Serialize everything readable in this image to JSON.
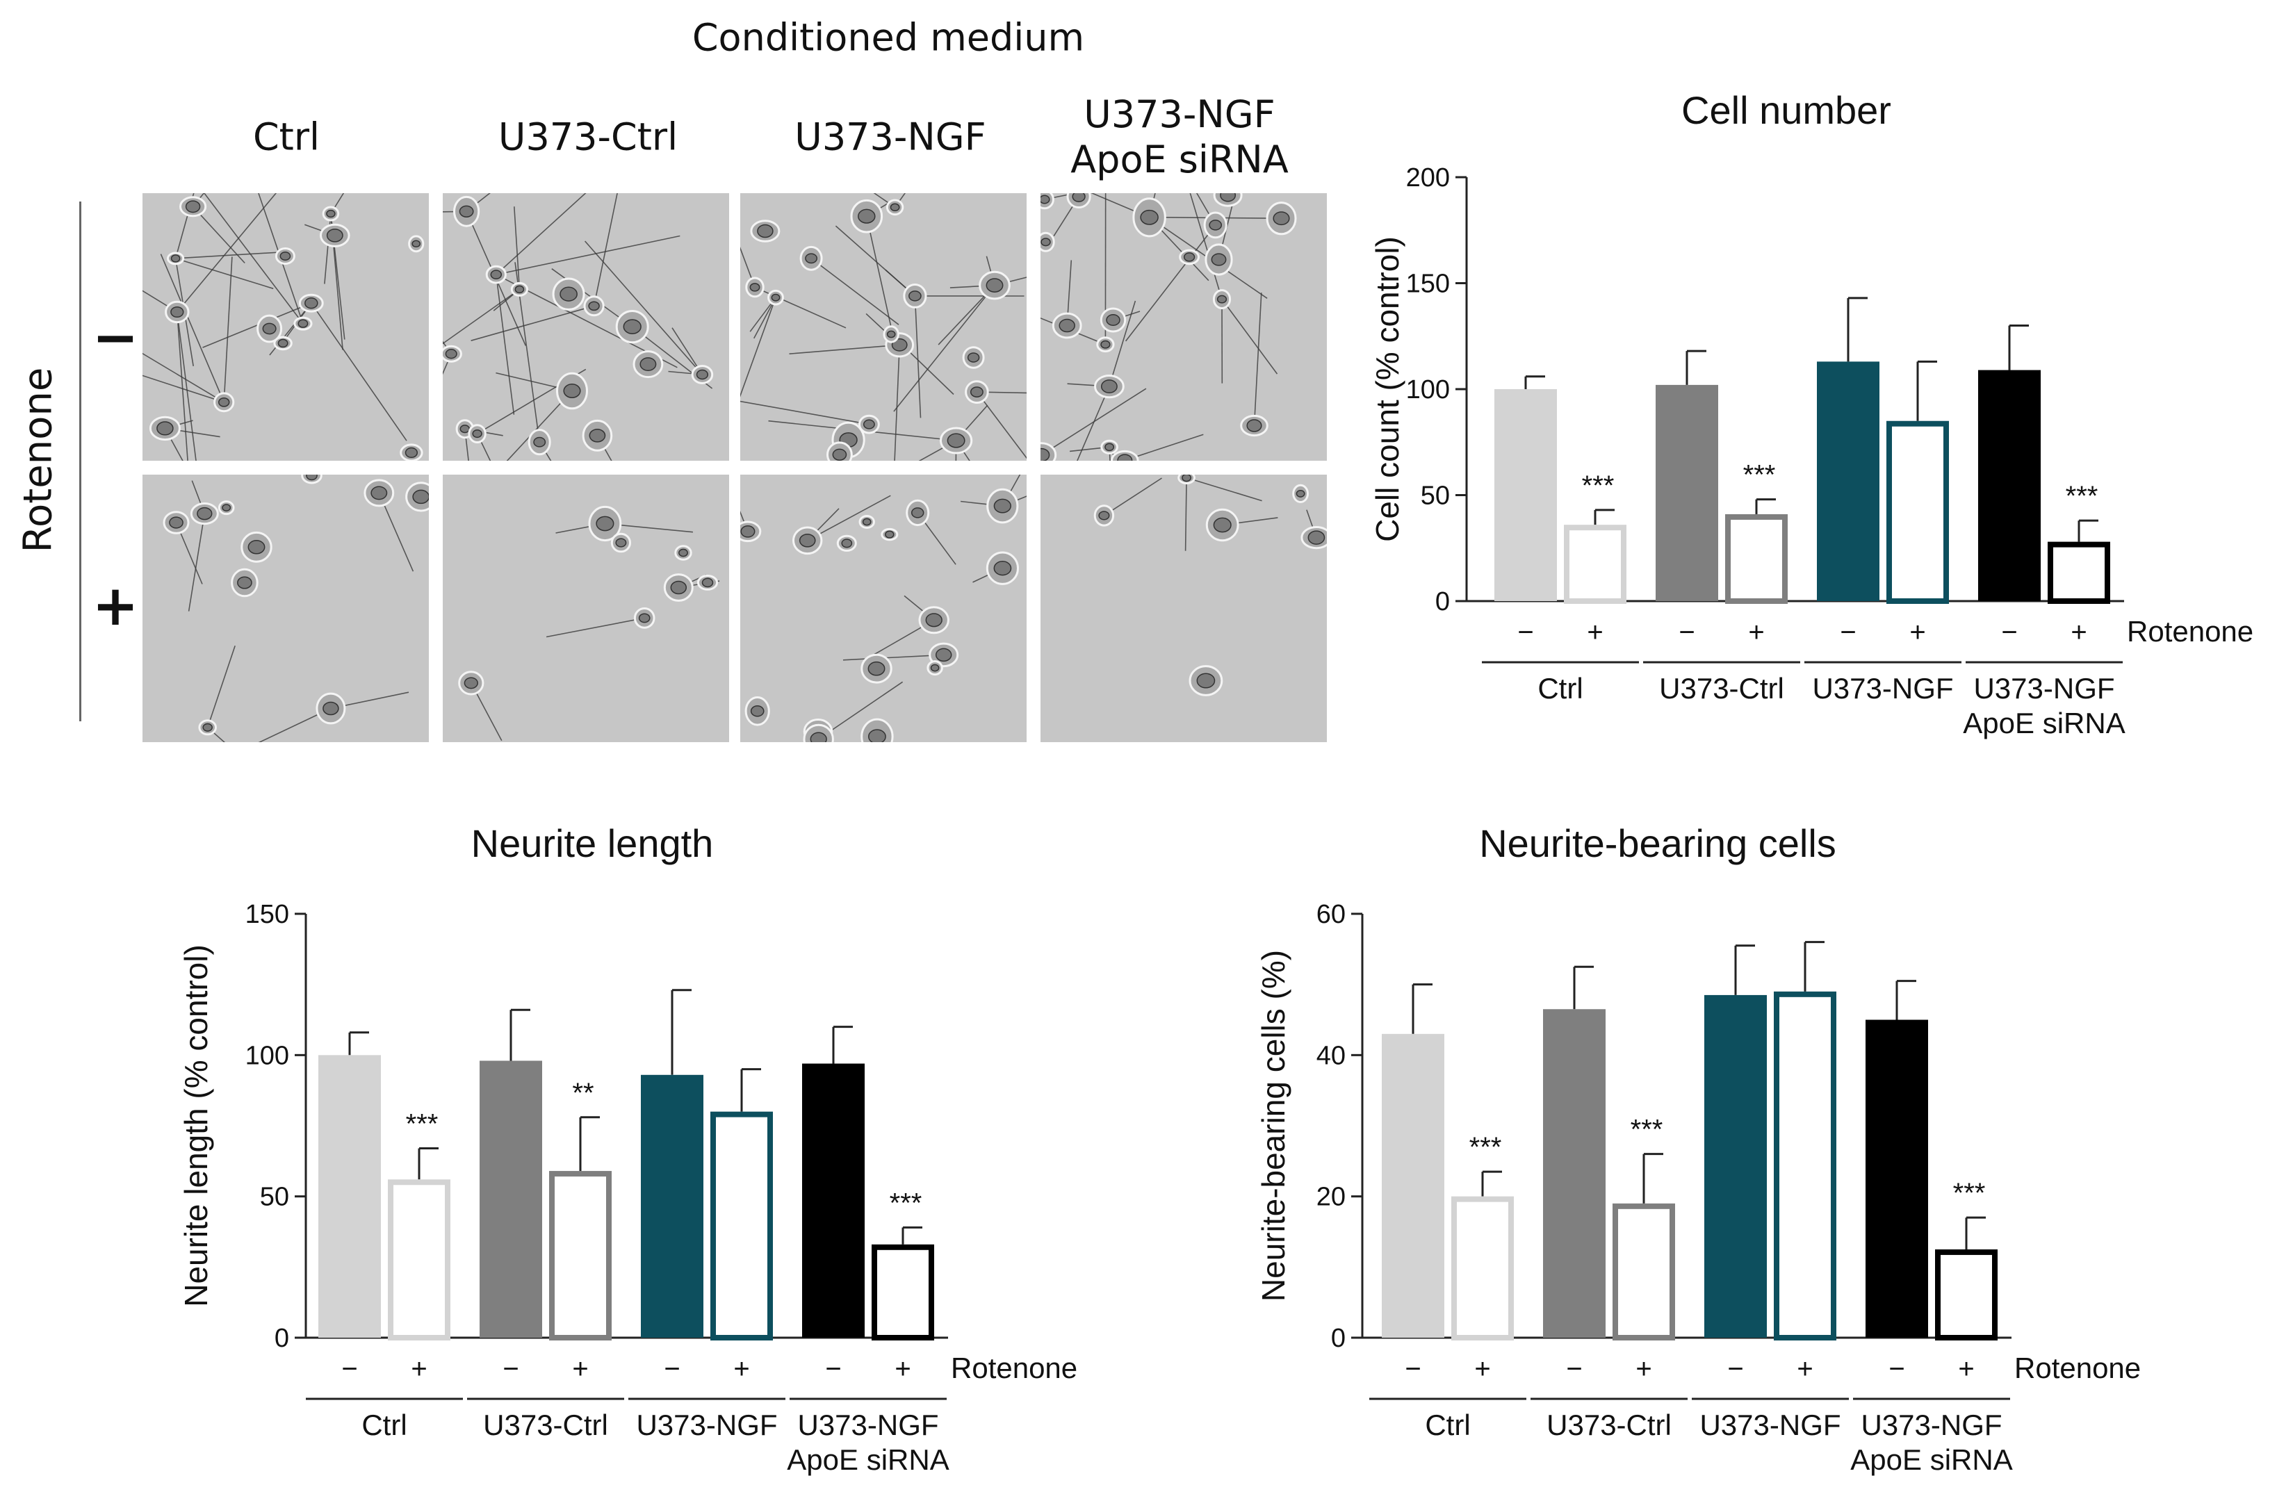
{
  "panel_a": {
    "title": "Conditioned medium",
    "columns": [
      "Ctrl",
      "U373-Ctrl",
      "U373-NGF",
      "U373-NGF\nApoE siRNA"
    ],
    "row_axis_label": "Rotenone",
    "row_signs": [
      "−",
      "+"
    ]
  },
  "colors": {
    "ctrl": "#d3d3d3",
    "u373_ctrl": "#7f7f7f",
    "u373_ngf": "#0d4f5e",
    "apoe_sirna": "#000000",
    "rotenone_fill": "#ffffff"
  },
  "chart_data": [
    {
      "type": "bar",
      "title": "Cell number",
      "ylabel": "Cell count (% control)",
      "ylim": [
        0,
        200
      ],
      "yticks": [
        0,
        50,
        100,
        150,
        200
      ],
      "groups": [
        "Ctrl",
        "U373-Ctrl",
        "U373-NGF",
        "U373-NGF\nApoE siRNA"
      ],
      "treatment_labels": [
        "−",
        "+"
      ],
      "treatment_name": "Rotenone",
      "series": [
        {
          "values": [
            100,
            102,
            113,
            109
          ],
          "errors": [
            6,
            16,
            30,
            21
          ]
        },
        {
          "values": [
            36,
            41,
            85,
            28
          ],
          "errors": [
            7,
            7,
            28,
            10
          ]
        }
      ],
      "significance": [
        "***",
        "***",
        "",
        "***"
      ]
    },
    {
      "type": "bar",
      "title": "Neurite length",
      "ylabel": "Neurite length (% control)",
      "ylim": [
        0,
        150
      ],
      "yticks": [
        0,
        50,
        100,
        150
      ],
      "groups": [
        "Ctrl",
        "U373-Ctrl",
        "U373-NGF",
        "U373-NGF\nApoE siRNA"
      ],
      "treatment_labels": [
        "−",
        "+"
      ],
      "treatment_name": "Rotenone",
      "series": [
        {
          "values": [
            100,
            98,
            93,
            97
          ],
          "errors": [
            8,
            18,
            30,
            13
          ]
        },
        {
          "values": [
            56,
            59,
            80,
            33
          ],
          "errors": [
            11,
            19,
            15,
            6
          ]
        }
      ],
      "significance": [
        "***",
        "**",
        "",
        "***"
      ]
    },
    {
      "type": "bar",
      "title": "Neurite-bearing cells",
      "ylabel": "Neurite-bearing cells (%)",
      "ylim": [
        0,
        60
      ],
      "yticks": [
        0,
        20,
        40,
        60
      ],
      "groups": [
        "Ctrl",
        "U373-Ctrl",
        "U373-NGF",
        "U373-NGF\nApoE siRNA"
      ],
      "treatment_labels": [
        "−",
        "+"
      ],
      "treatment_name": "Rotenone",
      "series": [
        {
          "values": [
            43,
            46.5,
            48.5,
            45
          ],
          "errors": [
            7,
            6,
            7,
            5.5
          ]
        },
        {
          "values": [
            20,
            19,
            49,
            12.5
          ],
          "errors": [
            3.5,
            7,
            7,
            4.5
          ]
        }
      ],
      "significance": [
        "***",
        "***",
        "",
        "***"
      ]
    }
  ]
}
